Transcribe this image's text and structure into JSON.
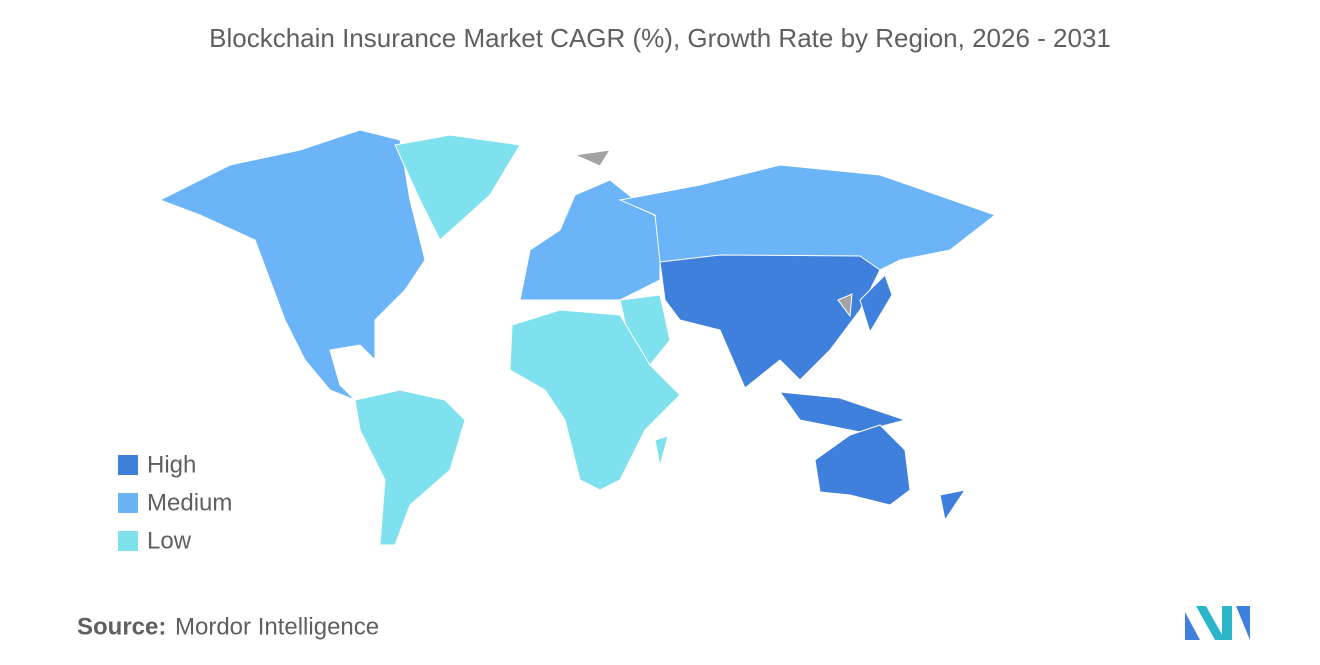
{
  "title": "Blockchain Insurance Market CAGR (%), Growth Rate by Region, 2026 - 2031",
  "legend": [
    {
      "label": "High",
      "color": "#3e80dc"
    },
    {
      "label": "Medium",
      "color": "#6bb4f7"
    },
    {
      "label": "Low",
      "color": "#7fe0ee"
    }
  ],
  "no_data_color": "#a3a3a3",
  "source": {
    "label": "Source:",
    "text": "Mordor Intelligence"
  }
}
